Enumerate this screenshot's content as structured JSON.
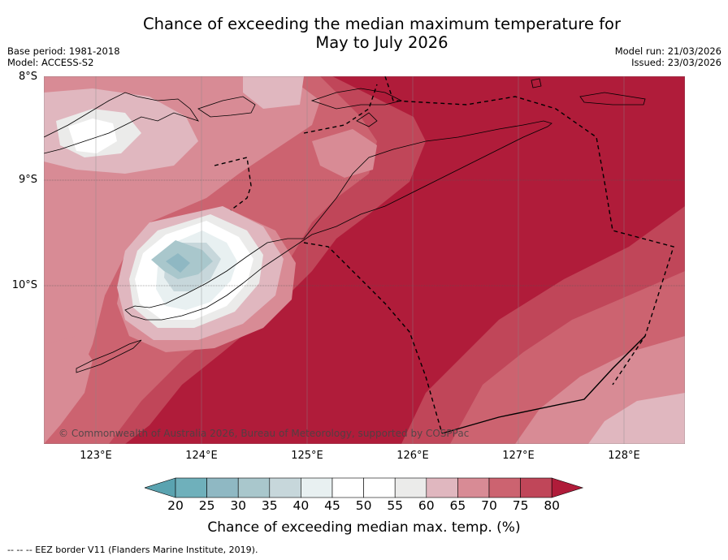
{
  "header": {
    "title_line1": "Chance of exceeding the median maximum temperature for",
    "title_line2": "May to July 2026",
    "base_period": "Base period: 1981-2018",
    "model": "Model: ACCESS-S2",
    "model_run": "Model run: 21/03/2026",
    "issued": "Issued: 23/03/2026"
  },
  "map": {
    "lat_labels": [
      "8°S",
      "9°S",
      "10°S"
    ],
    "lon_labels": [
      "123°E",
      "124°E",
      "125°E",
      "126°E",
      "127°E",
      "128°E"
    ],
    "copyright": "© Commonwealth of Australia 2026, Bureau of Meteorology, supported by COSPPac",
    "region": "Timor-Leste and surrounding region"
  },
  "colorbar": {
    "ticks": [
      "20",
      "25",
      "30",
      "35",
      "40",
      "45",
      "50",
      "55",
      "60",
      "65",
      "70",
      "75",
      "80"
    ],
    "colors": [
      "#5aa3b0",
      "#6fb0bb",
      "#8fb8c3",
      "#a9c7cc",
      "#c7d7db",
      "#e8f0f1",
      "#ffffff",
      "#ffffff",
      "#ebebea",
      "#e0b7bf",
      "#d88b95",
      "#cc6370",
      "#c04659",
      "#b01c3a"
    ],
    "label": "Chance of exceeding median max. temp. (%)"
  },
  "footer": {
    "legend": "--  --  -- EEZ border V11 (Flanders Marine Institute, 2019)."
  }
}
